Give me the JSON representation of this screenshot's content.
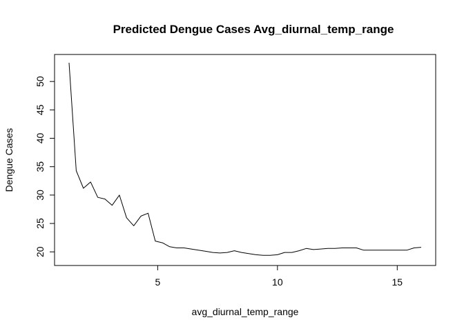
{
  "chart_data": {
    "type": "line",
    "title": "Predicted Dengue Cases Avg_diurnal_temp_range",
    "xlabel": "avg_diurnal_temp_range",
    "ylabel": "Dengue Cases",
    "xlim": [
      1.3,
      16.0
    ],
    "ylim": [
      19.3,
      53.3
    ],
    "xticks": [
      5,
      10,
      15
    ],
    "yticks": [
      20,
      25,
      30,
      35,
      40,
      45,
      50
    ],
    "xtick_labels": [
      "5",
      "10",
      "15"
    ],
    "ytick_labels": [
      "20",
      "25",
      "30",
      "35",
      "40",
      "45",
      "50"
    ],
    "grid": false,
    "line_color": "#000000",
    "series": [
      {
        "x": [
          1.3,
          1.6,
          1.9,
          2.2,
          2.5,
          2.8,
          3.1,
          3.4,
          3.7,
          4.0,
          4.3,
          4.6,
          4.9,
          5.2,
          5.5,
          5.8,
          6.1,
          6.4,
          6.7,
          7.0,
          7.3,
          7.6,
          7.9,
          8.2,
          8.5,
          8.8,
          9.1,
          9.4,
          9.7,
          10.0,
          10.3,
          10.6,
          10.9,
          11.2,
          11.5,
          11.8,
          12.1,
          12.4,
          12.7,
          13.0,
          13.3,
          13.6,
          13.9,
          14.2,
          14.5,
          14.8,
          15.1,
          15.4,
          15.7,
          16.0
        ],
        "values": [
          53.3,
          34.3,
          31.2,
          32.3,
          29.6,
          29.3,
          28.2,
          30.0,
          26.0,
          24.6,
          26.3,
          26.8,
          21.9,
          21.6,
          20.9,
          20.7,
          20.7,
          20.5,
          20.3,
          20.1,
          19.9,
          19.8,
          19.9,
          20.2,
          19.9,
          19.7,
          19.5,
          19.4,
          19.4,
          19.5,
          19.9,
          19.9,
          20.2,
          20.6,
          20.4,
          20.5,
          20.6,
          20.6,
          20.7,
          20.7,
          20.7,
          20.3,
          20.3,
          20.3,
          20.3,
          20.3,
          20.3,
          20.3,
          20.7,
          20.8
        ]
      }
    ]
  }
}
